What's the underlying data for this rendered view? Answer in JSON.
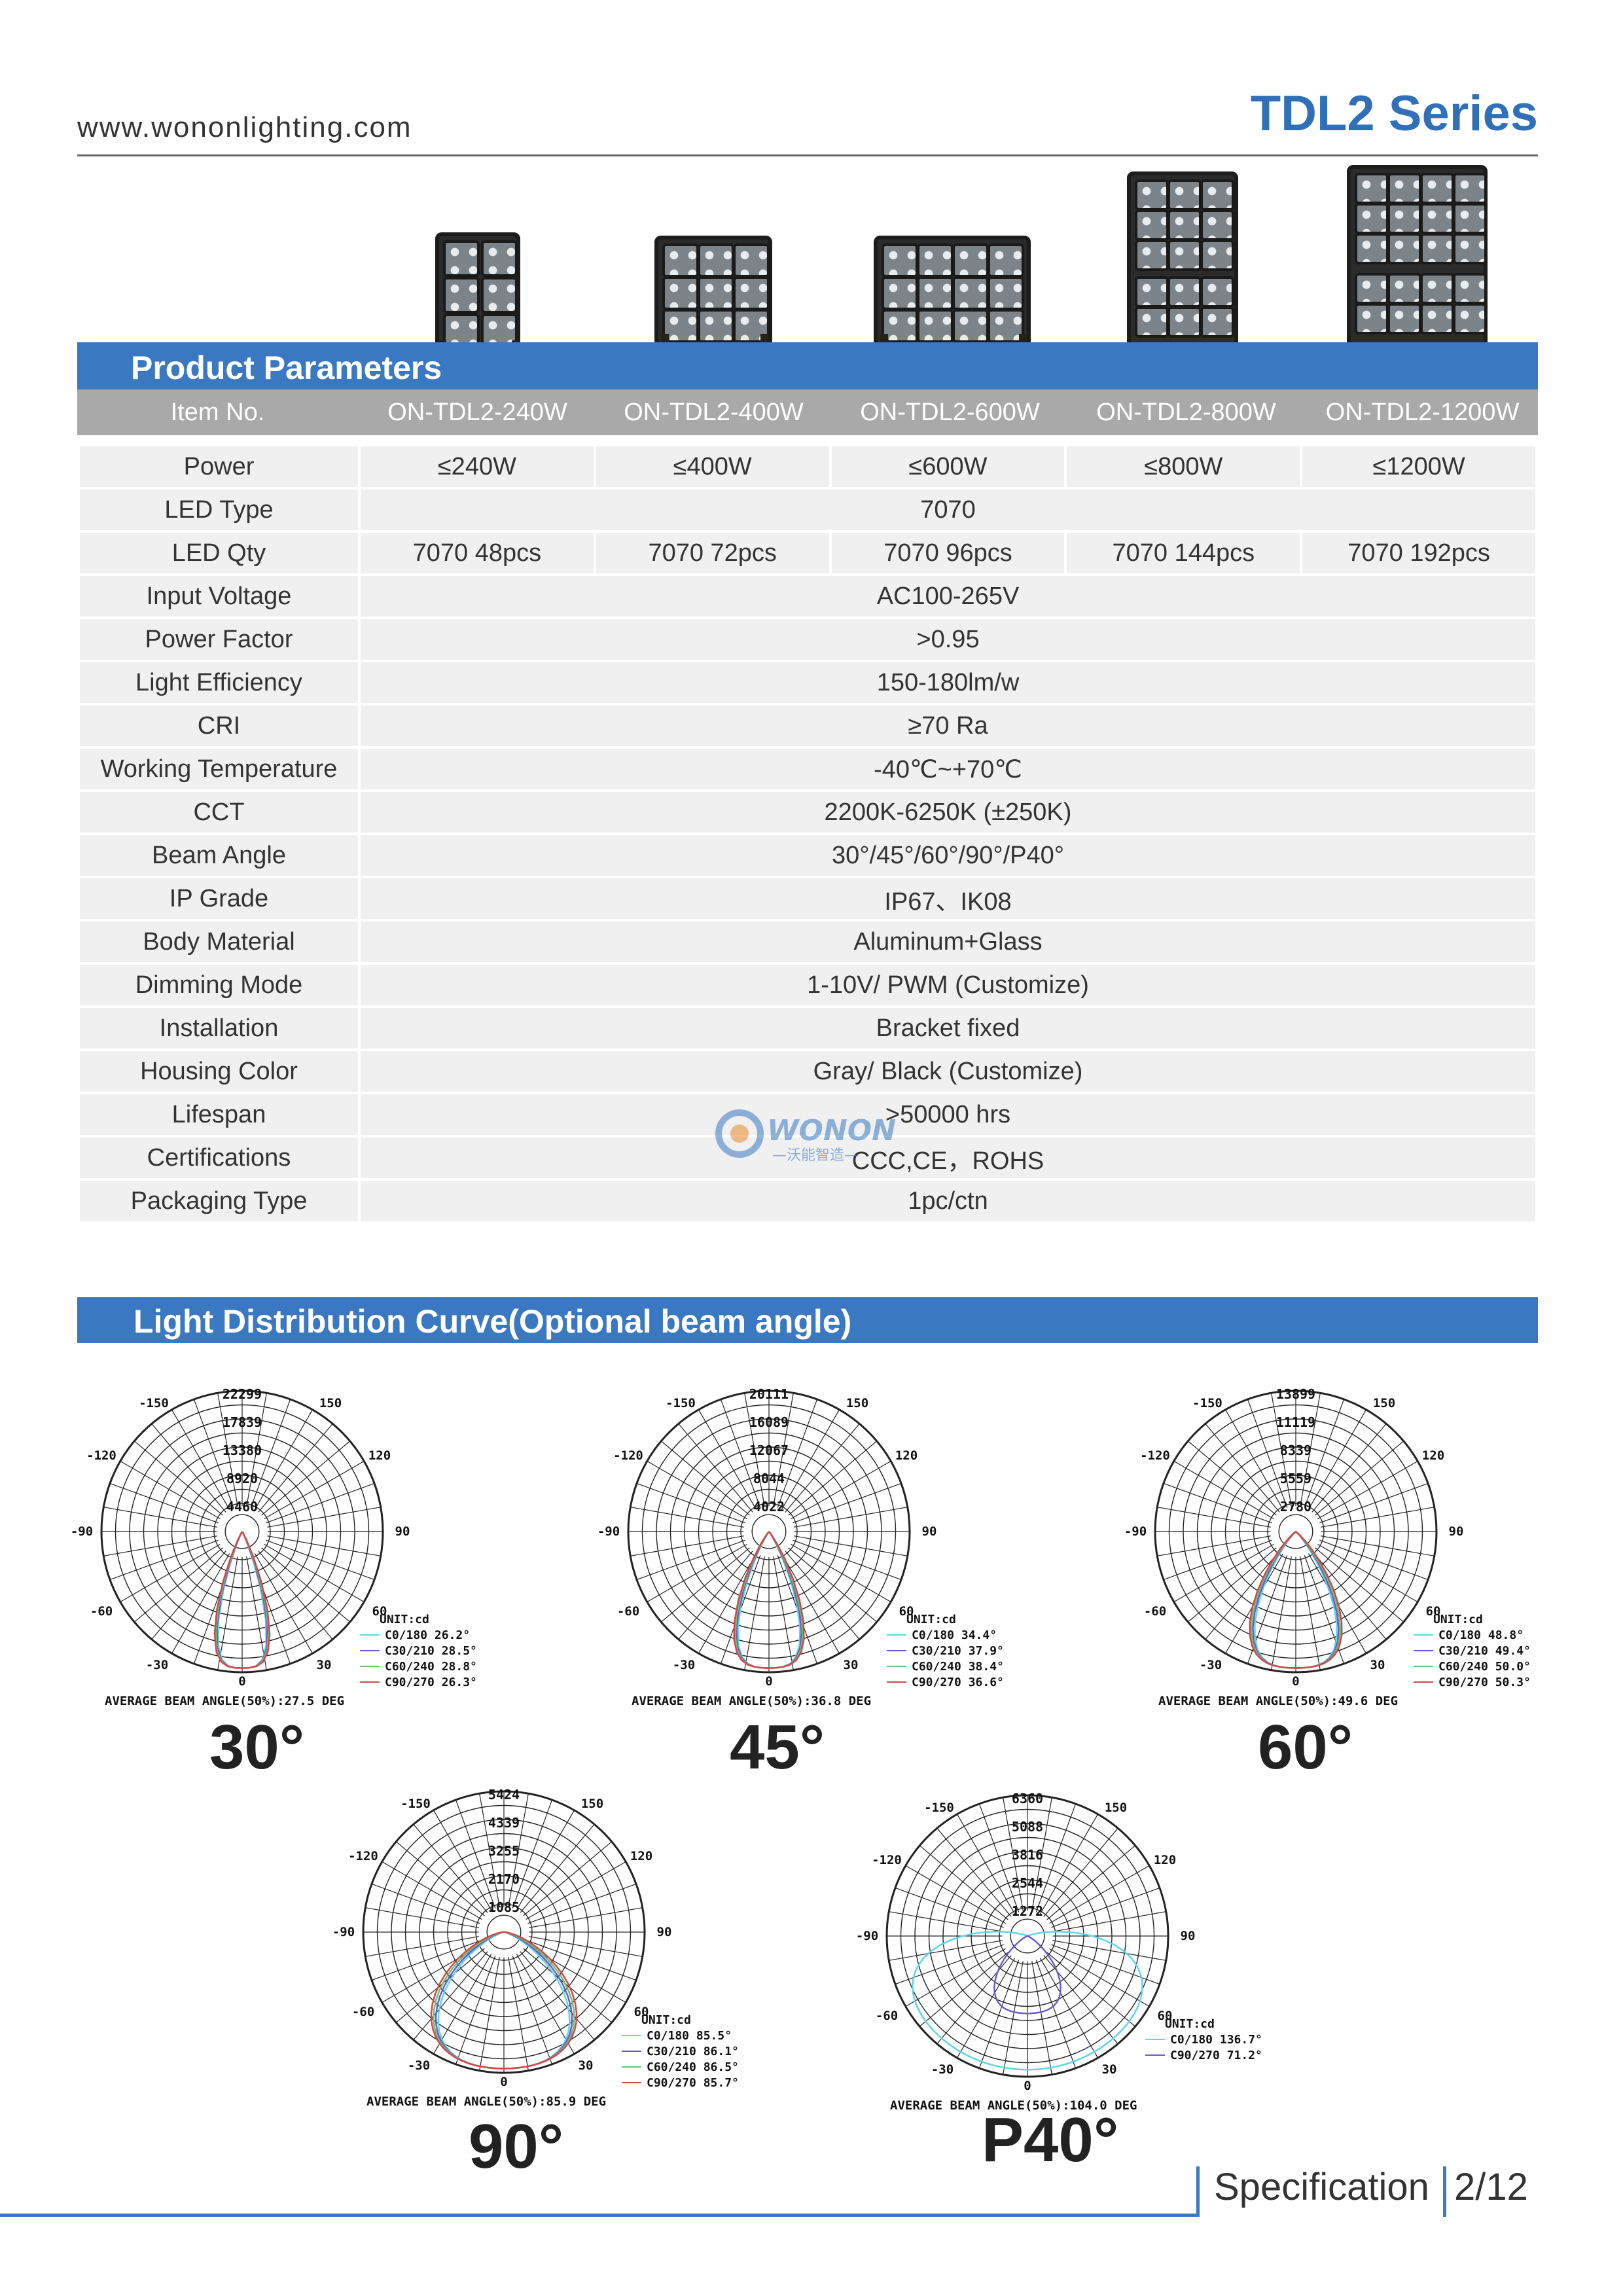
{
  "header": {
    "website": "www.wononlighting.com",
    "series": "TDL2 Series"
  },
  "section1": {
    "title": "Product Parameters"
  },
  "section2": {
    "title": "Light Distribution Curve(Optional beam angle)"
  },
  "table": {
    "item_label": "Item No.",
    "models": [
      "ON-TDL2-240W",
      "ON-TDL2-400W",
      "ON-TDL2-600W",
      "ON-TDL2-800W",
      "ON-TDL2-1200W"
    ],
    "power": {
      "label": "Power",
      "values": [
        "≤240W",
        "≤400W",
        "≤600W",
        "≤800W",
        "≤1200W"
      ]
    },
    "led_type": {
      "label": "LED Type",
      "value": "7070"
    },
    "led_qty": {
      "label": "LED Qty",
      "values": [
        "7070 48pcs",
        "7070 72pcs",
        "7070 96pcs",
        "7070 144pcs",
        "7070 192pcs"
      ]
    },
    "input_voltage": {
      "label": "Input Voltage",
      "value": "AC100-265V"
    },
    "power_factor": {
      "label": "Power Factor",
      "value": ">0.95"
    },
    "light_efficiency": {
      "label": "Light Efficiency",
      "value": "150-180lm/w"
    },
    "cri": {
      "label": "CRI",
      "value": "≥70 Ra"
    },
    "working_temperature": {
      "label": "Working Temperature",
      "value": "-40℃~+70℃"
    },
    "cct": {
      "label": "CCT",
      "value": "2200K-6250K (±250K)"
    },
    "beam_angle": {
      "label": "Beam Angle",
      "value": "30°/45°/60°/90°/P40°"
    },
    "ip_grade": {
      "label": "IP Grade",
      "value": "IP67、IK08"
    },
    "body_material": {
      "label": "Body Material",
      "value": "Aluminum+Glass"
    },
    "dimming_mode": {
      "label": "Dimming Mode",
      "value": "1-10V/ PWM (Customize)"
    },
    "installation": {
      "label": "Installation",
      "value": "Bracket fixed"
    },
    "housing_color": {
      "label": "Housing Color",
      "value": "Gray/ Black (Customize)"
    },
    "lifespan": {
      "label": "Lifespan",
      "value": ">50000 hrs"
    },
    "certifications": {
      "label": "Certifications",
      "value": "CCC,CE，ROHS"
    },
    "packaging_type": {
      "label": "Packaging Type",
      "value": "1pc/ctn"
    }
  },
  "watermark": {
    "brand": "WONON",
    "tagline": "—沃能智造—"
  },
  "curves": [
    {
      "angle_label": "30°",
      "rings": [
        "22299",
        "17839",
        "13380",
        "8920",
        "4460"
      ],
      "legend": [
        "UNIT:cd",
        "C0/180 26.2°",
        "C30/210 28.5°",
        "C60/240 28.8°",
        "C90/270 26.3°"
      ],
      "average": "AVERAGE BEAM ANGLE(50%):27.5 DEG",
      "spread": 0.28
    },
    {
      "angle_label": "45°",
      "rings": [
        "20111",
        "16089",
        "12067",
        "8044",
        "4022"
      ],
      "legend": [
        "UNIT:cd",
        "C0/180 34.4°",
        "C30/210 37.9°",
        "C60/240 38.4°",
        "C90/270 36.6°"
      ],
      "average": "AVERAGE BEAM ANGLE(50%):36.8 DEG",
      "spread": 0.36
    },
    {
      "angle_label": "60°",
      "rings": [
        "13899",
        "11119",
        "8339",
        "5559",
        "2780"
      ],
      "legend": [
        "UNIT:cd",
        "C0/180 48.8°",
        "C30/210 49.4°",
        "C60/240 50.0°",
        "C90/270 50.3°"
      ],
      "average": "AVERAGE BEAM ANGLE(50%):49.6 DEG",
      "spread": 0.48
    },
    {
      "angle_label": "90°",
      "rings": [
        "5424",
        "4339",
        "3255",
        "2170",
        "1085"
      ],
      "legend": [
        "UNIT:cd",
        "C0/180 85.5°",
        "C30/210 86.1°",
        "C60/240 86.5°",
        "C90/270 85.7°"
      ],
      "average": "AVERAGE BEAM ANGLE(50%):85.9 DEG",
      "spread": 0.8
    },
    {
      "angle_label": "P40°",
      "rings": [
        "6360",
        "5088",
        "3816",
        "2544",
        "1272"
      ],
      "legend": [
        "UNIT:cd",
        "C0/180 136.7°",
        "C90/270 71.2°"
      ],
      "average": "AVERAGE BEAM ANGLE(50%):104.0 DEG",
      "spread": 1.2
    },
    {
      "axis_labels": [
        "-150",
        "150",
        "-120",
        "120",
        "-90",
        "90",
        "-60",
        "60",
        "-30",
        "30",
        "0"
      ]
    }
  ],
  "colors": {
    "accent": "#3a79c1",
    "series": "#2f70b8"
  },
  "footer": {
    "label": "Specification",
    "page": "2/12"
  }
}
